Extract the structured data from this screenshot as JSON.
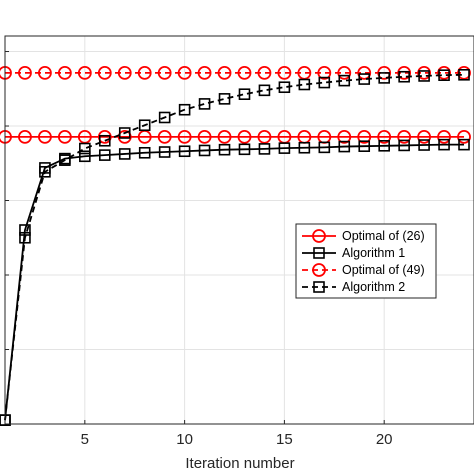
{
  "chart_data": {
    "type": "line",
    "title": "",
    "xlabel": "Iteration number",
    "ylabel": "",
    "xlim": [
      1,
      24.5
    ],
    "x_ticks": [
      5,
      10,
      15,
      20
    ],
    "x_tick_labels": [
      "5",
      "10",
      "15",
      "20"
    ],
    "y_tick_count": 6,
    "grid": true,
    "legend_position": "middle-right",
    "series": [
      {
        "name": "Optimal of (26)",
        "color": "#ff0000",
        "line_style": "solid",
        "marker": "circle",
        "x": [
          1,
          2,
          3,
          4,
          5,
          6,
          7,
          8,
          9,
          10,
          11,
          12,
          13,
          14,
          15,
          16,
          17,
          18,
          19,
          20,
          21,
          22,
          23,
          24
        ],
        "y": [
          0.74,
          0.74,
          0.74,
          0.74,
          0.74,
          0.74,
          0.74,
          0.74,
          0.74,
          0.74,
          0.74,
          0.74,
          0.74,
          0.74,
          0.74,
          0.74,
          0.74,
          0.74,
          0.74,
          0.74,
          0.74,
          0.74,
          0.74,
          0.74
        ]
      },
      {
        "name": "Algorithm 1",
        "color": "#000000",
        "line_style": "solid",
        "marker": "square",
        "x": [
          1,
          2,
          3,
          4,
          5,
          6,
          7,
          8,
          9,
          10,
          11,
          12,
          13,
          14,
          15,
          16,
          17,
          18,
          19,
          20,
          21,
          22,
          23,
          24
        ],
        "y": [
          0.01,
          0.5,
          0.66,
          0.684,
          0.69,
          0.693,
          0.696,
          0.699,
          0.701,
          0.703,
          0.705,
          0.707,
          0.708,
          0.709,
          0.711,
          0.712,
          0.713,
          0.715,
          0.716,
          0.717,
          0.718,
          0.719,
          0.72,
          0.72
        ]
      },
      {
        "name": "Optimal of (49)",
        "color": "#ff0000",
        "line_style": "dashed",
        "marker": "circle",
        "x": [
          1,
          2,
          3,
          4,
          5,
          6,
          7,
          8,
          9,
          10,
          11,
          12,
          13,
          14,
          15,
          16,
          17,
          18,
          19,
          20,
          21,
          22,
          23,
          24
        ],
        "y": [
          0.905,
          0.905,
          0.905,
          0.905,
          0.905,
          0.905,
          0.905,
          0.905,
          0.905,
          0.905,
          0.905,
          0.905,
          0.905,
          0.905,
          0.905,
          0.905,
          0.905,
          0.905,
          0.905,
          0.905,
          0.905,
          0.905,
          0.905,
          0.905
        ]
      },
      {
        "name": "Algorithm 2",
        "color": "#000000",
        "line_style": "dashed",
        "marker": "square",
        "x": [
          1,
          2,
          3,
          4,
          5,
          6,
          7,
          8,
          9,
          10,
          11,
          12,
          13,
          14,
          15,
          16,
          17,
          18,
          19,
          20,
          21,
          22,
          23,
          24
        ],
        "y": [
          0.01,
          0.48,
          0.65,
          0.68,
          0.71,
          0.73,
          0.75,
          0.77,
          0.79,
          0.81,
          0.825,
          0.838,
          0.85,
          0.86,
          0.868,
          0.875,
          0.88,
          0.885,
          0.889,
          0.892,
          0.895,
          0.897,
          0.899,
          0.9
        ]
      }
    ]
  }
}
